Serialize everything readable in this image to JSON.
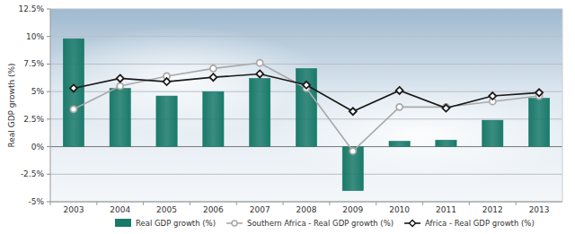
{
  "chart_data": {
    "type": "bar",
    "y_label": "Real GDP growth (%)",
    "categories": [
      "2003",
      "2004",
      "2005",
      "2006",
      "2007",
      "2008",
      "2009",
      "2010",
      "2011",
      "2012",
      "2013"
    ],
    "series": [
      {
        "name": "Real GDP growth (%)",
        "type": "bar",
        "color": "#1a7a6a",
        "values": [
          9.8,
          5.3,
          4.6,
          5.0,
          6.2,
          7.1,
          -4.0,
          0.5,
          0.6,
          2.4,
          4.4
        ]
      },
      {
        "name": "Southern Africa - Real GDP growth (%)",
        "type": "line",
        "color": "#a9a9a9",
        "marker": "circle",
        "values": [
          3.4,
          5.5,
          6.4,
          7.1,
          7.6,
          5.3,
          -0.4,
          3.6,
          3.6,
          4.1,
          4.6
        ]
      },
      {
        "name": "Africa - Real GDP growth (%)",
        "type": "line",
        "color": "#1a1a1a",
        "marker": "diamond",
        "values": [
          5.3,
          6.2,
          5.9,
          6.3,
          6.6,
          5.6,
          3.2,
          5.1,
          3.5,
          4.6,
          4.9
        ]
      }
    ],
    "ylim": [
      -5,
      12.5
    ],
    "yticks": [
      {
        "value": -5,
        "label": "-5%"
      },
      {
        "value": -2.5,
        "label": "-2.5%"
      },
      {
        "value": 0,
        "label": "0%"
      },
      {
        "value": 2.5,
        "label": "2.5%"
      },
      {
        "value": 5,
        "label": "5%"
      },
      {
        "value": 7.5,
        "label": "7.5%"
      },
      {
        "value": 10,
        "label": "10%"
      },
      {
        "value": 12.5,
        "label": "12.5%"
      }
    ],
    "grid": true,
    "legend": "bottom"
  }
}
